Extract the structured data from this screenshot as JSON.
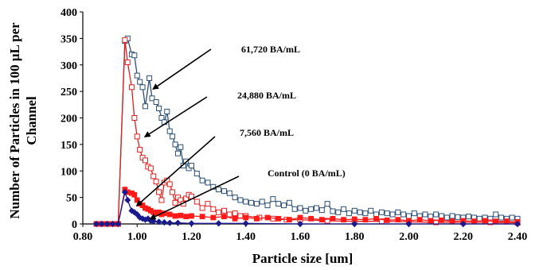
{
  "chart_data": {
    "type": "line",
    "xlabel": "Particle size [um]",
    "ylabel_line1": "Number of Particles in 100 μL per",
    "ylabel_line2": "Channel",
    "xlim": [
      0.8,
      2.4
    ],
    "ylim": [
      0,
      400
    ],
    "x_ticks": [
      "0.80",
      "1.00",
      "1.20",
      "1.40",
      "1.60",
      "1.80",
      "2.00",
      "2.20",
      "2.40"
    ],
    "y_ticks": [
      "0",
      "50",
      "100",
      "150",
      "200",
      "250",
      "300",
      "350",
      "400"
    ],
    "grid": false,
    "annotations": [
      {
        "text": "61,720 BA/mL",
        "target": [
          1.06,
          255
        ]
      },
      {
        "text": "24,880 BA/mL",
        "target": [
          1.03,
          165
        ]
      },
      {
        "text": "7,560 BA/mL",
        "target": [
          1.0,
          35
        ]
      },
      {
        "text": "Control (0 BA/mL)",
        "target": [
          1.05,
          10
        ]
      }
    ],
    "series": [
      {
        "color": "#2b4f75",
        "marker": "open-square",
        "points": [
          [
            0.85,
            0
          ],
          [
            0.87,
            0
          ],
          [
            0.89,
            0
          ],
          [
            0.91,
            0
          ],
          [
            0.93,
            0
          ],
          [
            0.955,
            345
          ],
          [
            0.965,
            350
          ],
          [
            0.98,
            320
          ],
          [
            0.99,
            318
          ],
          [
            1.0,
            280
          ],
          [
            1.01,
            268
          ],
          [
            1.02,
            258
          ],
          [
            1.03,
            222
          ],
          [
            1.045,
            275
          ],
          [
            1.055,
            237
          ],
          [
            1.07,
            230
          ],
          [
            1.08,
            218
          ],
          [
            1.09,
            200
          ],
          [
            1.1,
            192
          ],
          [
            1.11,
            212
          ],
          [
            1.12,
            175
          ],
          [
            1.13,
            165
          ],
          [
            1.14,
            150
          ],
          [
            1.15,
            133
          ],
          [
            1.16,
            145
          ],
          [
            1.17,
            110
          ],
          [
            1.18,
            118
          ],
          [
            1.19,
            105
          ],
          [
            1.2,
            110
          ],
          [
            1.22,
            95
          ],
          [
            1.24,
            82
          ],
          [
            1.26,
            78
          ],
          [
            1.28,
            70
          ],
          [
            1.3,
            65
          ],
          [
            1.32,
            62
          ],
          [
            1.34,
            58
          ],
          [
            1.36,
            50
          ],
          [
            1.38,
            45
          ],
          [
            1.4,
            42
          ],
          [
            1.42,
            40
          ],
          [
            1.44,
            38
          ],
          [
            1.46,
            42
          ],
          [
            1.48,
            35
          ],
          [
            1.5,
            47
          ],
          [
            1.52,
            38
          ],
          [
            1.54,
            35
          ],
          [
            1.56,
            40
          ],
          [
            1.58,
            28
          ],
          [
            1.6,
            30
          ],
          [
            1.62,
            25
          ],
          [
            1.64,
            28
          ],
          [
            1.66,
            30
          ],
          [
            1.68,
            26
          ],
          [
            1.7,
            38
          ],
          [
            1.72,
            24
          ],
          [
            1.74,
            22
          ],
          [
            1.76,
            28
          ],
          [
            1.78,
            20
          ],
          [
            1.8,
            25
          ],
          [
            1.82,
            22
          ],
          [
            1.84,
            20
          ],
          [
            1.86,
            25
          ],
          [
            1.88,
            18
          ],
          [
            1.9,
            22
          ],
          [
            1.92,
            20
          ],
          [
            1.94,
            18
          ],
          [
            1.96,
            22
          ],
          [
            1.98,
            18
          ],
          [
            2.0,
            15
          ],
          [
            2.02,
            20
          ],
          [
            2.04,
            15
          ],
          [
            2.06,
            18
          ],
          [
            2.08,
            14
          ],
          [
            2.1,
            18
          ],
          [
            2.12,
            15
          ],
          [
            2.14,
            12
          ],
          [
            2.16,
            15
          ],
          [
            2.18,
            13
          ],
          [
            2.2,
            12
          ],
          [
            2.22,
            14
          ],
          [
            2.24,
            12
          ],
          [
            2.26,
            10
          ],
          [
            2.28,
            12
          ],
          [
            2.3,
            10
          ],
          [
            2.32,
            18
          ],
          [
            2.34,
            12
          ],
          [
            2.36,
            10
          ],
          [
            2.38,
            12
          ],
          [
            2.4,
            10
          ]
        ]
      },
      {
        "color": "#e02020",
        "marker": "open-square",
        "points": [
          [
            0.85,
            0
          ],
          [
            0.87,
            0
          ],
          [
            0.89,
            0
          ],
          [
            0.91,
            0
          ],
          [
            0.93,
            0
          ],
          [
            0.955,
            347
          ],
          [
            0.965,
            305
          ],
          [
            0.98,
            258
          ],
          [
            0.99,
            200
          ],
          [
            1.0,
            165
          ],
          [
            1.01,
            140
          ],
          [
            1.02,
            125
          ],
          [
            1.03,
            120
          ],
          [
            1.04,
            108
          ],
          [
            1.05,
            105
          ],
          [
            1.06,
            90
          ],
          [
            1.07,
            80
          ],
          [
            1.08,
            60
          ],
          [
            1.09,
            45
          ],
          [
            1.1,
            78
          ],
          [
            1.11,
            82
          ],
          [
            1.12,
            75
          ],
          [
            1.13,
            60
          ],
          [
            1.14,
            40
          ],
          [
            1.15,
            50
          ],
          [
            1.16,
            45
          ],
          [
            1.17,
            38
          ],
          [
            1.18,
            48
          ],
          [
            1.19,
            55
          ],
          [
            1.2,
            52
          ],
          [
            1.22,
            42
          ],
          [
            1.24,
            30
          ],
          [
            1.26,
            38
          ],
          [
            1.28,
            28
          ],
          [
            1.3,
            22
          ],
          [
            1.32,
            25
          ],
          [
            1.34,
            18
          ],
          [
            1.36,
            20
          ],
          [
            1.38,
            15
          ],
          [
            1.4,
            15
          ],
          [
            1.45,
            12
          ],
          [
            1.5,
            10
          ],
          [
            1.55,
            8
          ],
          [
            1.6,
            8
          ],
          [
            1.7,
            6
          ],
          [
            1.8,
            5
          ],
          [
            1.9,
            5
          ],
          [
            2.0,
            4
          ],
          [
            2.1,
            3
          ],
          [
            2.2,
            3
          ],
          [
            2.3,
            3
          ],
          [
            2.4,
            2
          ]
        ]
      },
      {
        "color": "#ff1a1a",
        "marker": "filled-square",
        "points": [
          [
            0.85,
            0
          ],
          [
            0.87,
            0
          ],
          [
            0.89,
            0
          ],
          [
            0.91,
            0
          ],
          [
            0.93,
            0
          ],
          [
            0.955,
            65
          ],
          [
            0.965,
            60
          ],
          [
            0.98,
            58
          ],
          [
            0.99,
            55
          ],
          [
            1.0,
            45
          ],
          [
            1.01,
            38
          ],
          [
            1.02,
            35
          ],
          [
            1.03,
            30
          ],
          [
            1.04,
            28
          ],
          [
            1.05,
            25
          ],
          [
            1.06,
            22
          ],
          [
            1.07,
            20
          ],
          [
            1.08,
            22
          ],
          [
            1.09,
            18
          ],
          [
            1.1,
            20
          ],
          [
            1.12,
            18
          ],
          [
            1.14,
            15
          ],
          [
            1.16,
            16
          ],
          [
            1.18,
            14
          ],
          [
            1.2,
            15
          ],
          [
            1.24,
            14
          ],
          [
            1.28,
            12
          ],
          [
            1.32,
            14
          ],
          [
            1.36,
            10
          ],
          [
            1.4,
            12
          ],
          [
            1.44,
            10
          ],
          [
            1.48,
            12
          ],
          [
            1.52,
            10
          ],
          [
            1.56,
            8
          ],
          [
            1.6,
            12
          ],
          [
            1.64,
            10
          ],
          [
            1.68,
            8
          ],
          [
            1.72,
            10
          ],
          [
            1.76,
            8
          ],
          [
            1.8,
            9
          ],
          [
            1.84,
            8
          ],
          [
            1.88,
            10
          ],
          [
            1.92,
            7
          ],
          [
            1.96,
            8
          ],
          [
            2.0,
            6
          ],
          [
            2.04,
            8
          ],
          [
            2.08,
            6
          ],
          [
            2.12,
            7
          ],
          [
            2.16,
            5
          ],
          [
            2.2,
            6
          ],
          [
            2.24,
            5
          ],
          [
            2.28,
            6
          ],
          [
            2.32,
            5
          ],
          [
            2.36,
            5
          ],
          [
            2.4,
            4
          ]
        ]
      },
      {
        "color": "#1a1a8c",
        "marker": "filled-diamond",
        "points": [
          [
            0.85,
            0
          ],
          [
            0.87,
            0
          ],
          [
            0.89,
            0
          ],
          [
            0.91,
            0
          ],
          [
            0.93,
            0
          ],
          [
            0.955,
            60
          ],
          [
            0.965,
            45
          ],
          [
            0.98,
            25
          ],
          [
            0.99,
            22
          ],
          [
            1.0,
            18
          ],
          [
            1.01,
            12
          ],
          [
            1.02,
            10
          ],
          [
            1.03,
            8
          ],
          [
            1.04,
            10
          ],
          [
            1.05,
            6
          ],
          [
            1.06,
            5
          ],
          [
            1.08,
            4
          ],
          [
            1.1,
            3
          ],
          [
            1.12,
            2
          ],
          [
            1.15,
            2
          ],
          [
            1.2,
            1
          ],
          [
            1.3,
            1
          ],
          [
            1.4,
            1
          ],
          [
            1.6,
            0
          ],
          [
            1.8,
            0
          ],
          [
            2.0,
            0
          ],
          [
            2.2,
            0
          ],
          [
            2.4,
            0
          ]
        ]
      }
    ]
  }
}
